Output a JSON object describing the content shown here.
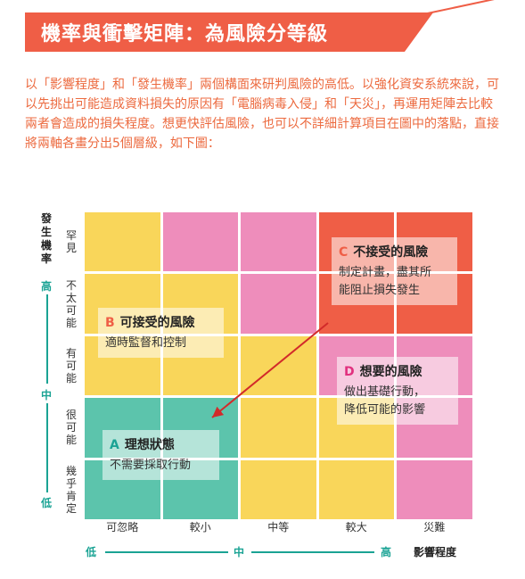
{
  "title": "機率與衝擊矩陣：為風險分等級",
  "intro": "以「影響程度」和「發生機率」兩個構面來研判風險的高低。以強化資安系統來說，可以先挑出可能造成資料損失的原因有「電腦病毒入侵」和「天災」，再運用矩陣去比較兩者會造成的損失程度。想更快評估風險，也可以不詳細計算項目在圖中的落點，直接將兩軸各畫分出5個層級，如下圖：",
  "y_axis": {
    "title": "發生機率",
    "ticks": [
      "罕見",
      "不太可能",
      "有可能",
      "很可能",
      "幾乎肯定"
    ],
    "marks": {
      "high": "高",
      "mid": "中",
      "low": "低"
    }
  },
  "x_axis": {
    "title": "影響程度",
    "ticks": [
      "可忽略",
      "較小",
      "中等",
      "較大",
      "災難"
    ],
    "marks": {
      "low": "低",
      "mid": "中",
      "high": "高"
    }
  },
  "colors": {
    "yellow": "#f9d65a",
    "pink": "#ee8dbb",
    "red": "#ef5e46",
    "teal": "#5cc4ac",
    "accent": "#ef5e46",
    "axis": "#1aa394"
  },
  "grid": [
    [
      "yellow",
      "pink",
      "pink",
      "red",
      "red"
    ],
    [
      "yellow",
      "yellow",
      "pink",
      "red",
      "red"
    ],
    [
      "yellow",
      "yellow",
      "yellow",
      "pink",
      "pink"
    ],
    [
      "teal",
      "teal",
      "yellow",
      "yellow",
      "pink"
    ],
    [
      "teal",
      "teal",
      "yellow",
      "yellow",
      "pink"
    ]
  ],
  "zones": [
    {
      "letter": "C",
      "title": "不接受的風險",
      "desc": [
        "制定計畫，盡其所",
        "能阻止損失發生"
      ],
      "color": "#ef5e46"
    },
    {
      "letter": "B",
      "title": "可接受的風險",
      "desc": [
        "適時監督和控制"
      ],
      "color": "#ef5e46"
    },
    {
      "letter": "D",
      "title": "想要的風險",
      "desc": [
        "做出基礎行動，",
        "降低可能的影響"
      ],
      "color": "#e1307e"
    },
    {
      "letter": "A",
      "title": "理想狀態",
      "desc": [
        "不需要採取行動"
      ],
      "color": "#1aa394"
    }
  ]
}
